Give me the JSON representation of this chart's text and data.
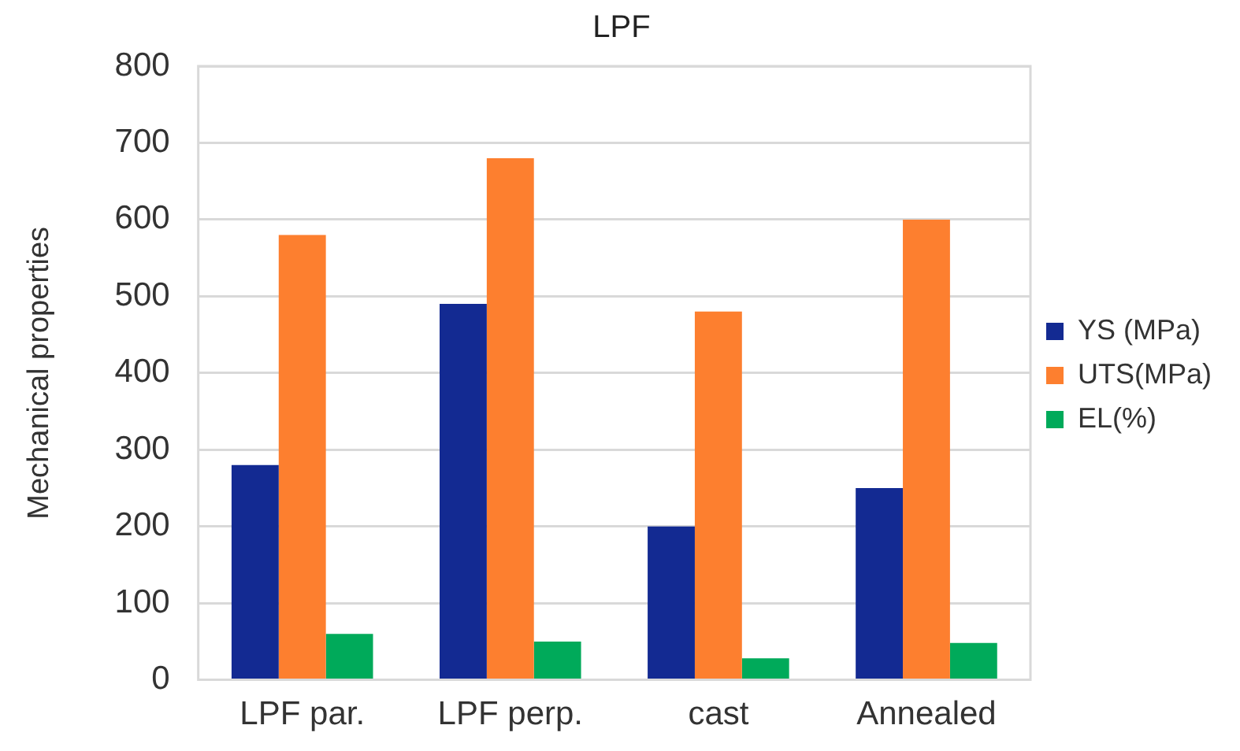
{
  "chart_data": {
    "type": "bar",
    "title": "LPF",
    "ylabel": "Mechanical properties",
    "categories": [
      "LPF par.",
      "LPF perp.",
      "cast",
      "Annealed"
    ],
    "series": [
      {
        "name": "YS (MPa)",
        "color": "#132a92",
        "values": [
          280,
          490,
          200,
          250
        ]
      },
      {
        "name": "UTS(MPa)",
        "color": "#fd7f2f",
        "values": [
          580,
          680,
          480,
          600
        ]
      },
      {
        "name": "EL(%)",
        "color": "#00aa5a",
        "values": [
          60,
          50,
          28,
          48
        ]
      }
    ],
    "ylim": [
      0,
      800
    ],
    "yticks": [
      0,
      100,
      200,
      300,
      400,
      500,
      600,
      700,
      800
    ],
    "grid": "y",
    "legend": "right"
  }
}
